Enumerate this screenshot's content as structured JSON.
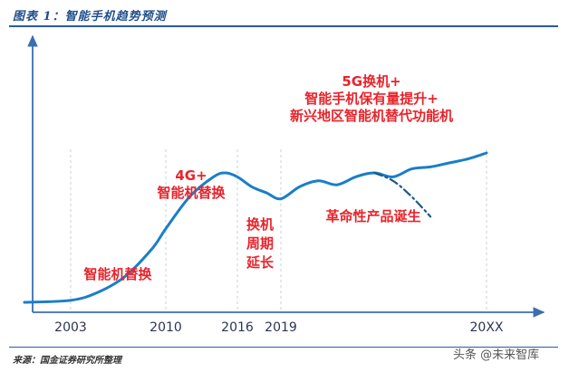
{
  "figure": {
    "title": "图表 1：智能手机趋势预测",
    "source": "来源：国金证券研究所整理",
    "watermark": "头条 @未来智库"
  },
  "chart_data": {
    "type": "line",
    "title": "",
    "xlabel": "",
    "ylabel": "",
    "x_ticks": [
      "2003",
      "2010",
      "2016",
      "2019",
      "20XX"
    ],
    "series": [
      {
        "style": "solid",
        "color": "#1a7ec8",
        "points": [
          {
            "x": 2001,
            "y": 0.05
          },
          {
            "x": 2003,
            "y": 0.06
          },
          {
            "x": 2005,
            "y": 0.1
          },
          {
            "x": 2007,
            "y": 0.18
          },
          {
            "x": 2009,
            "y": 0.32
          },
          {
            "x": 2010,
            "y": 0.42
          },
          {
            "x": 2012,
            "y": 0.58
          },
          {
            "x": 2014,
            "y": 0.68
          },
          {
            "x": 2015,
            "y": 0.7
          },
          {
            "x": 2016,
            "y": 0.68
          },
          {
            "x": 2017,
            "y": 0.63
          },
          {
            "x": 2018,
            "y": 0.6
          },
          {
            "x": 2019,
            "y": 0.57
          },
          {
            "x": 2020,
            "y": 0.63
          },
          {
            "x": 2021,
            "y": 0.66
          },
          {
            "x": 2022,
            "y": 0.64
          },
          {
            "x": 2023,
            "y": 0.68
          },
          {
            "x": 2024,
            "y": 0.7
          },
          {
            "x": 2025,
            "y": 0.68
          },
          {
            "x": 2026,
            "y": 0.72
          },
          {
            "x": 2027,
            "y": 0.73
          },
          {
            "x": 2028,
            "y": 0.75
          },
          {
            "x": 2029,
            "y": 0.77
          },
          {
            "x": 2030,
            "y": 0.8
          }
        ]
      },
      {
        "style": "dash-dot",
        "color": "#1a5a8c",
        "points": [
          {
            "x": 2024,
            "y": 0.7
          },
          {
            "x": 2025,
            "y": 0.66
          },
          {
            "x": 2026,
            "y": 0.58
          },
          {
            "x": 2027,
            "y": 0.48
          }
        ]
      }
    ],
    "annotations": [
      {
        "text": "智能机替换",
        "lines": [
          "智能机替换"
        ]
      },
      {
        "text": "4G+ 智能机替换",
        "lines": [
          "4G+",
          "智能机替换"
        ]
      },
      {
        "text": "换机 周期 延长",
        "lines": [
          "换机",
          "周期",
          "延长"
        ]
      },
      {
        "text": "5G换机+ 智能手机保有量提升+ 新兴地区智能机替代功能机",
        "lines": [
          "5G换机+",
          "智能手机保有量提升+",
          "新兴地区智能机替代功能机"
        ]
      },
      {
        "text": "革命性产品诞生",
        "lines": [
          "革命性产品诞生"
        ]
      }
    ],
    "grid": false,
    "legend": "none"
  }
}
